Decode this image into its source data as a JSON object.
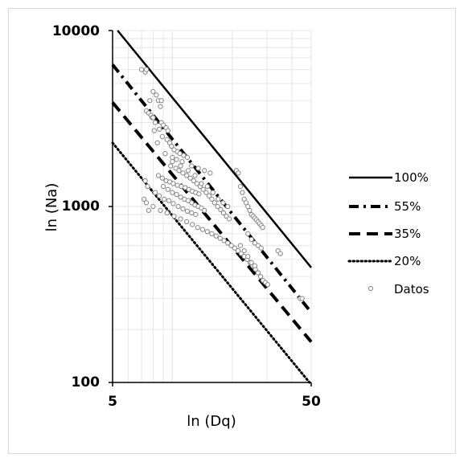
{
  "chart_data": {
    "type": "scatter",
    "title": "",
    "xlabel": "ln (Dq)",
    "ylabel": "ln (Na)",
    "x_scale": "log",
    "y_scale": "log",
    "xlim": [
      5,
      50
    ],
    "ylim": [
      100,
      10000
    ],
    "x_ticks": [
      "5",
      "50"
    ],
    "y_ticks": [
      "100",
      "1000",
      "10000"
    ],
    "grid": true,
    "legend_position": "right",
    "colors": {
      "lines": "#000000",
      "markers": "#8c8c8c",
      "grid": "#e6e6e6"
    },
    "lines": [
      {
        "name": "100%",
        "style": "solid",
        "points": [
          [
            5.3,
            10000
          ],
          [
            50,
            450
          ]
        ]
      },
      {
        "name": "55%",
        "style": "dashdot",
        "points": [
          [
            5,
            6400
          ],
          [
            50,
            250
          ]
        ]
      },
      {
        "name": "35%",
        "style": "dashed",
        "points": [
          [
            5,
            3900
          ],
          [
            50,
            170
          ]
        ]
      },
      {
        "name": "20%",
        "style": "dotted",
        "points": [
          [
            5,
            2300
          ],
          [
            49,
            100
          ]
        ]
      }
    ],
    "scatter": {
      "name": "Datos",
      "points": [
        [
          7.0,
          6000
        ],
        [
          7.3,
          5800
        ],
        [
          7.4,
          6000
        ],
        [
          8.0,
          4500
        ],
        [
          8.3,
          4300
        ],
        [
          8.5,
          4000
        ],
        [
          8.8,
          4000
        ],
        [
          8.7,
          3700
        ],
        [
          7.7,
          4000
        ],
        [
          7.4,
          3500
        ],
        [
          7.6,
          3400
        ],
        [
          7.8,
          3300
        ],
        [
          7.9,
          3200
        ],
        [
          8.0,
          3200
        ],
        [
          8.2,
          3000
        ],
        [
          8.8,
          3000
        ],
        [
          9.0,
          2900
        ],
        [
          9.3,
          2800
        ],
        [
          9.5,
          2700
        ],
        [
          8.6,
          2750
        ],
        [
          8.1,
          2700
        ],
        [
          8.9,
          2500
        ],
        [
          9.4,
          2400
        ],
        [
          9.7,
          2300
        ],
        [
          8.4,
          2300
        ],
        [
          9.9,
          2200
        ],
        [
          10.2,
          2100
        ],
        [
          10.6,
          2050
        ],
        [
          10.9,
          2000
        ],
        [
          11.4,
          1950
        ],
        [
          11.9,
          1900
        ],
        [
          9.2,
          2000
        ],
        [
          10.0,
          1900
        ],
        [
          10.5,
          1850
        ],
        [
          11.2,
          1800
        ],
        [
          9.8,
          1700
        ],
        [
          10.4,
          1650
        ],
        [
          10.8,
          1600
        ],
        [
          11.3,
          1550
        ],
        [
          11.8,
          1500
        ],
        [
          12.3,
          1450
        ],
        [
          12.8,
          1400
        ],
        [
          13.3,
          1350
        ],
        [
          13.8,
          1300
        ],
        [
          14.3,
          1250
        ],
        [
          14.8,
          1200
        ],
        [
          15.3,
          1150
        ],
        [
          15.8,
          1100
        ],
        [
          16.3,
          1050
        ],
        [
          16.9,
          1000
        ],
        [
          17.5,
          960
        ],
        [
          18.1,
          920
        ],
        [
          18.7,
          880
        ],
        [
          19.3,
          850
        ],
        [
          8.5,
          1500
        ],
        [
          8.9,
          1450
        ],
        [
          9.3,
          1400
        ],
        [
          9.7,
          1380
        ],
        [
          10.1,
          1350
        ],
        [
          10.6,
          1320
        ],
        [
          11.1,
          1300
        ],
        [
          11.6,
          1280
        ],
        [
          12.1,
          1250
        ],
        [
          12.6,
          1220
        ],
        [
          13.1,
          1200
        ],
        [
          13.6,
          1180
        ],
        [
          9.0,
          1300
        ],
        [
          9.5,
          1250
        ],
        [
          10.0,
          1200
        ],
        [
          10.5,
          1170
        ],
        [
          11.0,
          1130
        ],
        [
          11.5,
          1100
        ],
        [
          12.0,
          1080
        ],
        [
          12.5,
          1050
        ],
        [
          13.0,
          1020
        ],
        [
          13.5,
          1000
        ],
        [
          14.0,
          980
        ],
        [
          14.5,
          950
        ],
        [
          8.2,
          1200
        ],
        [
          8.6,
          1150
        ],
        [
          9.1,
          1100
        ],
        [
          9.6,
          1080
        ],
        [
          10.1,
          1040
        ],
        [
          10.7,
          1000
        ],
        [
          11.3,
          970
        ],
        [
          11.9,
          940
        ],
        [
          12.5,
          920
        ],
        [
          13.1,
          900
        ],
        [
          7.3,
          1400
        ],
        [
          7.5,
          1300
        ],
        [
          7.2,
          1100
        ],
        [
          7.4,
          1050
        ],
        [
          7.6,
          950
        ],
        [
          8.0,
          1000
        ],
        [
          8.7,
          950
        ],
        [
          9.4,
          920
        ],
        [
          10.2,
          880
        ],
        [
          11.0,
          850
        ],
        [
          11.8,
          820
        ],
        [
          12.6,
          790
        ],
        [
          13.4,
          760
        ],
        [
          14.2,
          740
        ],
        [
          15.0,
          720
        ],
        [
          15.8,
          700
        ],
        [
          16.6,
          680
        ],
        [
          17.4,
          660
        ],
        [
          18.2,
          640
        ],
        [
          19.0,
          620
        ],
        [
          19.8,
          600
        ],
        [
          20.6,
          580
        ],
        [
          21.4,
          560
        ],
        [
          22.2,
          540
        ],
        [
          23.0,
          520
        ],
        [
          23.8,
          500
        ],
        [
          24.6,
          480
        ],
        [
          25.4,
          460
        ],
        [
          26.2,
          440
        ],
        [
          27.0,
          420
        ],
        [
          27.8,
          400
        ],
        [
          28.6,
          380
        ],
        [
          29.4,
          370
        ],
        [
          30.2,
          360
        ],
        [
          21.0,
          1600
        ],
        [
          21.5,
          1550
        ],
        [
          22.0,
          1300
        ],
        [
          22.5,
          1200
        ],
        [
          23.0,
          1100
        ],
        [
          23.5,
          1050
        ],
        [
          24.0,
          1000
        ],
        [
          24.5,
          950
        ],
        [
          25.0,
          900
        ],
        [
          25.5,
          880
        ],
        [
          26.0,
          860
        ],
        [
          26.5,
          840
        ],
        [
          27.0,
          820
        ],
        [
          27.5,
          800
        ],
        [
          28.0,
          780
        ],
        [
          28.5,
          760
        ],
        [
          24.0,
          700
        ],
        [
          25.0,
          650
        ],
        [
          26.0,
          620
        ],
        [
          27.0,
          600
        ],
        [
          28.0,
          580
        ],
        [
          22.0,
          600
        ],
        [
          23.0,
          560
        ],
        [
          24.0,
          520
        ],
        [
          25.0,
          480
        ],
        [
          26.0,
          460
        ],
        [
          34.0,
          560
        ],
        [
          35.0,
          540
        ],
        [
          44.0,
          300
        ],
        [
          45.0,
          300
        ],
        [
          17.0,
          1100
        ],
        [
          18.0,
          1050
        ],
        [
          19.0,
          1000
        ],
        [
          16.0,
          1200
        ],
        [
          15.0,
          1300
        ],
        [
          14.0,
          1350
        ],
        [
          13.0,
          1500
        ],
        [
          12.0,
          1600
        ],
        [
          11.0,
          1700
        ],
        [
          10.0,
          1800
        ],
        [
          12.5,
          1700
        ],
        [
          13.5,
          1650
        ],
        [
          14.5,
          1600
        ],
        [
          15.5,
          1550
        ]
      ]
    }
  },
  "legend": {
    "items": [
      {
        "label": "100%",
        "style": "solid"
      },
      {
        "label": "55%",
        "style": "dashdot"
      },
      {
        "label": "35%",
        "style": "dashed"
      },
      {
        "label": "20%",
        "style": "dotted"
      },
      {
        "label": "Datos",
        "style": "marker"
      }
    ]
  }
}
